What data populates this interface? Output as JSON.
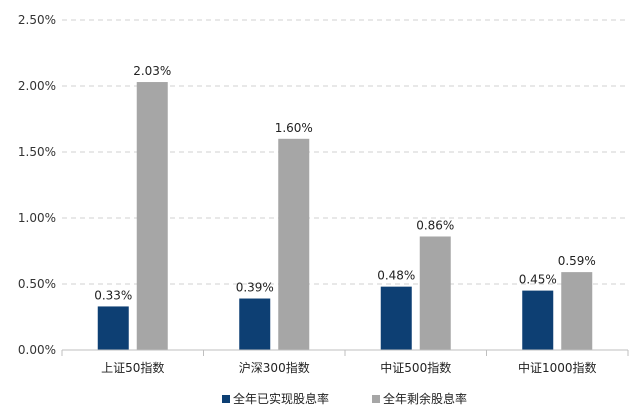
{
  "chart_data": {
    "type": "bar",
    "categories": [
      "上证50指数",
      "沪深300指数",
      "中证500指数",
      "中证1000指数"
    ],
    "series": [
      {
        "name": "全年已实现股息率",
        "values": [
          0.33,
          0.39,
          0.48,
          0.45
        ],
        "labels": [
          "0.33%",
          "0.39%",
          "0.48%",
          "0.45%"
        ],
        "color": "#0d3f73"
      },
      {
        "name": "全年剩余股息率",
        "values": [
          2.03,
          1.6,
          0.86,
          0.59
        ],
        "labels": [
          "2.03%",
          "1.60%",
          "0.86%",
          "0.59%"
        ],
        "color": "#a6a6a6"
      }
    ],
    "ylim": [
      0,
      2.5
    ],
    "yticks": [
      0,
      0.5,
      1.0,
      1.5,
      2.0,
      2.5
    ],
    "ytick_labels": [
      "0.00%",
      "0.50%",
      "1.00%",
      "1.50%",
      "2.00%",
      "2.50%"
    ],
    "grid": true,
    "legend_position": "bottom"
  }
}
